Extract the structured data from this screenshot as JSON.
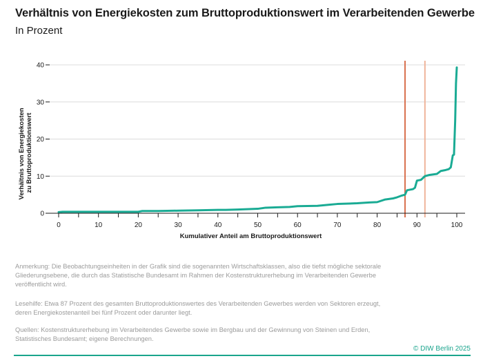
{
  "header": {
    "title": "Verhältnis von Energiekosten zum Bruttoproduktionswert im Verarbeitenden Gewerbe",
    "subtitle": "In Prozent"
  },
  "chart_data": {
    "type": "line",
    "title": "Verhältnis von Energiekosten zum Bruttoproduktionswert im Verarbeitenden Gewerbe",
    "subtitle": "In Prozent",
    "xlabel": "Kumulativer Anteil am Bruttoproduktionswert",
    "ylabel_lines": [
      "Verhältnis von Energiekosten",
      "zu Bruttoproduktionswert"
    ],
    "xlim": [
      0,
      100
    ],
    "ylim": [
      0,
      40
    ],
    "xticks": [
      0,
      10,
      20,
      30,
      40,
      50,
      60,
      70,
      80,
      90,
      100
    ],
    "yticks": [
      0,
      10,
      20,
      30,
      40
    ],
    "grid": "horizontal",
    "series": [
      {
        "color": "#1aab94",
        "x": [
          0,
          1,
          5,
          10,
          15,
          20,
          21,
          25,
          30,
          35,
          40,
          42,
          45,
          50,
          52,
          55,
          58,
          60,
          65,
          68,
          70,
          75,
          78,
          80,
          82,
          84,
          85,
          86,
          87,
          87.5,
          89,
          89.5,
          90,
          91,
          92,
          93,
          95,
          96,
          97,
          98,
          98.5,
          99,
          99.3,
          99.6,
          99.8,
          100
        ],
        "y": [
          0.3,
          0.4,
          0.4,
          0.4,
          0.4,
          0.4,
          0.6,
          0.6,
          0.7,
          0.8,
          0.9,
          0.9,
          1.0,
          1.2,
          1.5,
          1.6,
          1.7,
          1.9,
          2.0,
          2.3,
          2.5,
          2.7,
          2.9,
          3.0,
          3.7,
          4.0,
          4.3,
          4.7,
          5.0,
          6.2,
          6.5,
          6.9,
          8.8,
          9.0,
          10.0,
          10.3,
          10.6,
          11.4,
          11.6,
          11.9,
          12.4,
          15.6,
          15.8,
          25.0,
          35.0,
          39.3
        ]
      }
    ],
    "markers": [
      {
        "x": 87,
        "color": "#d9704f"
      },
      {
        "x": 92,
        "color": "#efb49a"
      }
    ],
    "minor_ticks_note": "vertical tick marks along x axis between labels"
  },
  "notes": {
    "note1": "Anmerkung: Die Beobachtungseinheiten in der Grafik sind die sogenannten Wirtschaftsklassen, also die tiefst mögliche sektorale Gliederungsebene, die durch das Statistische Bundesamt im Rahmen der Kostenstrukturerhebung im Verarbeitenden Gewerbe veröffentlicht wird.",
    "note2": "Lesehilfe: Etwa 87 Prozent des gesamten Bruttoproduktionswertes des Verarbeitenden Gewerbes werden von Sektoren erzeugt, deren Energiekostenanteil bei fünf Prozent oder darunter liegt.",
    "note3": "Quellen: Kostenstrukturerhebung im Verarbeitendes Gewerbe sowie im Bergbau und der Gewinnung von Steinen und Erden, Statistisches Bundesamt; eigene Berechnungen."
  },
  "footer": {
    "copyright": "© DIW Berlin 2025"
  }
}
